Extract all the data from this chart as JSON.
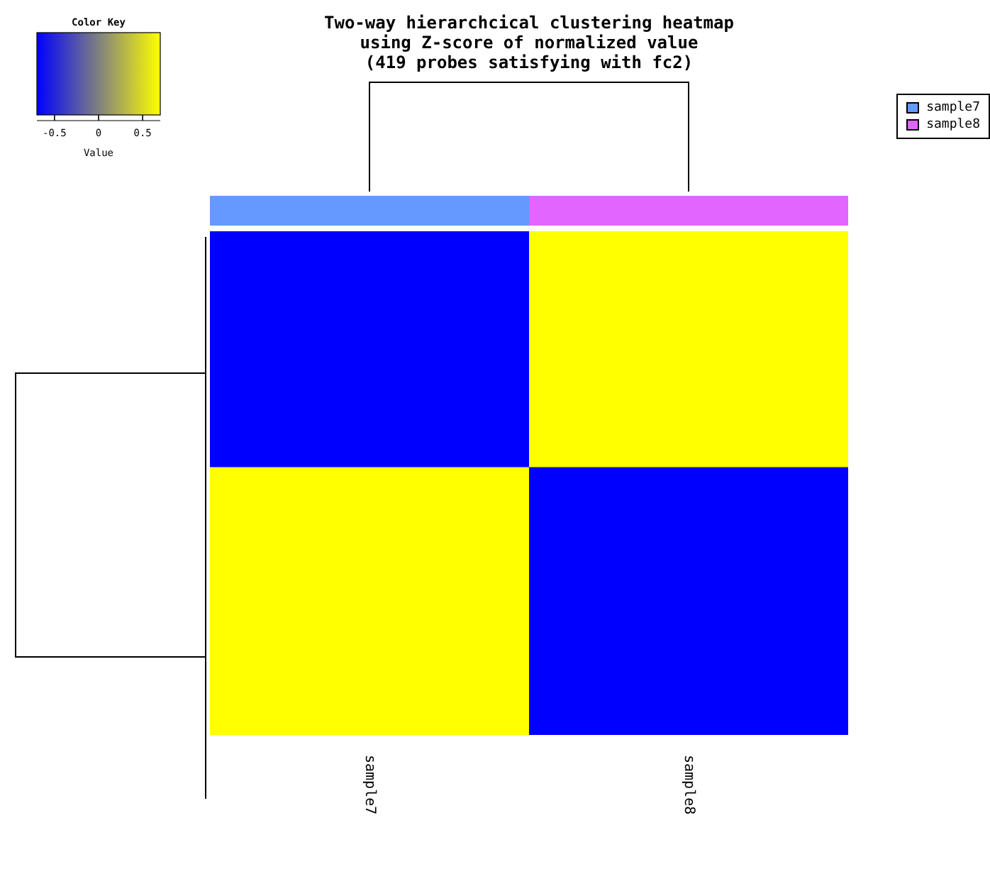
{
  "chart_data": {
    "type": "heatmap",
    "title": "Two-way hierarchcical clustering heatmap\nusing Z-score of normalized value\n(419 probes satisfying with fc2)",
    "categories": [
      "sample7",
      "sample8"
    ],
    "y_categories": [
      null,
      null
    ],
    "cells": [
      [
        -0.7,
        0.7
      ],
      [
        0.7,
        -0.7
      ]
    ],
    "clim": [
      -0.7,
      0.7
    ],
    "cticks": [
      -0.5,
      0,
      0.5
    ],
    "clabel": "Value",
    "annotations": [
      "Color Key",
      "sample7",
      "sample8"
    ]
  }
}
